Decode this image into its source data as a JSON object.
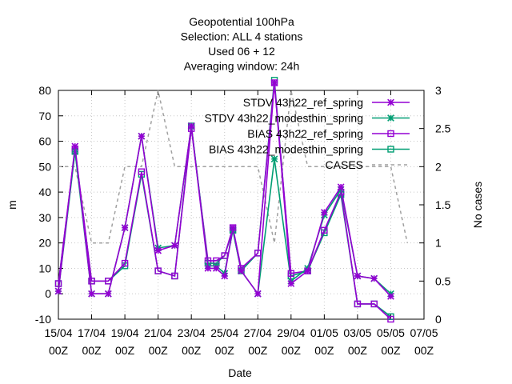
{
  "chart_data": {
    "type": "line",
    "title_lines": [
      "Geopotential 100hPa",
      "Selection: ALL       4 stations",
      "Used  06  + 12",
      "Averaging window: 24h"
    ],
    "xlabel": "Date",
    "ylabel": "m",
    "y2label": "No cases",
    "ylim": [
      -10,
      80
    ],
    "y2lim": [
      0,
      3
    ],
    "yticks": [
      -10,
      0,
      10,
      20,
      30,
      40,
      50,
      60,
      70,
      80
    ],
    "y2ticks": [
      "0",
      "0.5",
      "1",
      "1.5",
      "2",
      "2.5",
      "3"
    ],
    "xlim": [
      0,
      44
    ],
    "xticks": [
      {
        "x": 0,
        "line1": "15/04",
        "line2": "00Z"
      },
      {
        "x": 4,
        "line1": "17/04",
        "line2": "00Z"
      },
      {
        "x": 8,
        "line1": "19/04",
        "line2": "00Z"
      },
      {
        "x": 12,
        "line1": "21/04",
        "line2": "00Z"
      },
      {
        "x": 16,
        "line1": "23/04",
        "line2": "00Z"
      },
      {
        "x": 20,
        "line1": "25/04",
        "line2": "00Z"
      },
      {
        "x": 24,
        "line1": "27/04",
        "line2": "00Z"
      },
      {
        "x": 28,
        "line1": "29/04",
        "line2": "00Z"
      },
      {
        "x": 32,
        "line1": "01/05",
        "line2": "00Z"
      },
      {
        "x": 36,
        "line1": "03/05",
        "line2": "00Z"
      },
      {
        "x": 40,
        "line1": "05/05",
        "line2": "00Z"
      },
      {
        "x": 44,
        "line1": "07/05",
        "line2": "00Z"
      }
    ],
    "grid": true,
    "legend_position": "top-right",
    "x": [
      0,
      2,
      4,
      6,
      8,
      10,
      12,
      14,
      16,
      18,
      19,
      20,
      21,
      22,
      24,
      26,
      28,
      30,
      32,
      34,
      36,
      38,
      40,
      42
    ],
    "series": [
      {
        "name": "STDV 43h22_ref_spring",
        "color": "#9400d3",
        "marker": "star",
        "axis": "y",
        "values": [
          1,
          58,
          0,
          0,
          26,
          62,
          17,
          19,
          66,
          10,
          10,
          7,
          26,
          9,
          0,
          83,
          4,
          9,
          32,
          42,
          7,
          6,
          -1,
          null
        ]
      },
      {
        "name": "STDV 43h22_modesthin_spring",
        "color": "#009e73",
        "marker": "star",
        "axis": "y",
        "values": [
          1,
          56,
          0,
          0,
          26,
          62,
          18,
          19,
          66,
          11,
          11,
          8,
          25,
          9,
          0,
          53,
          5,
          10,
          31,
          41,
          7,
          6,
          0,
          null
        ]
      },
      {
        "name": "BIAS 43h22_ref_spring",
        "color": "#9400d3",
        "marker": "square",
        "axis": "y",
        "values": [
          4,
          57,
          5,
          5,
          12,
          48,
          9,
          7,
          65,
          13,
          13,
          15,
          26,
          10,
          16,
          83,
          8,
          9,
          25,
          40,
          -4,
          -4,
          -10,
          null
        ]
      },
      {
        "name": "BIAS 43h22_modesthin_spring",
        "color": "#009e73",
        "marker": "square",
        "axis": "y",
        "values": [
          4,
          56,
          5,
          5,
          11,
          47,
          9,
          7,
          66,
          12,
          12,
          15,
          25,
          9,
          16,
          84,
          7,
          9,
          24,
          39,
          -4,
          -4,
          -9,
          null
        ]
      },
      {
        "name": "CASES",
        "color": "#a0a0a0",
        "dashed": true,
        "axis": "y2",
        "x": [
          0,
          2,
          4,
          6,
          8,
          10,
          12,
          14,
          16,
          18,
          20,
          22,
          24,
          26,
          28,
          30,
          32,
          34,
          36,
          38,
          40,
          42
        ],
        "values": [
          2,
          2,
          1,
          1,
          2,
          2,
          3,
          2,
          2,
          2,
          2,
          2,
          2,
          1,
          3,
          2,
          2,
          2,
          2,
          2,
          2,
          1
        ]
      }
    ]
  }
}
